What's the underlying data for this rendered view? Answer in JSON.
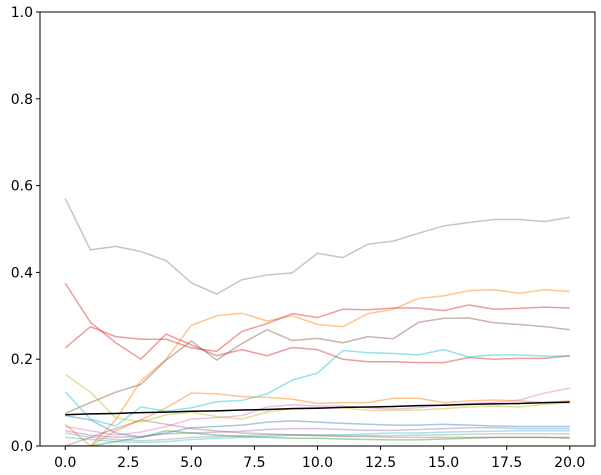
{
  "chart_data": {
    "type": "line",
    "title": "",
    "xlabel": "",
    "ylabel": "",
    "xlim": [
      -1,
      21
    ],
    "ylim": [
      0,
      1
    ],
    "grid": false,
    "legend": "none",
    "x": [
      0,
      1,
      2,
      3,
      4,
      5,
      6,
      7,
      8,
      9,
      10,
      11,
      12,
      13,
      14,
      15,
      16,
      17,
      18,
      19,
      20
    ],
    "x_ticks": [
      0.0,
      2.5,
      5.0,
      7.5,
      10.0,
      12.5,
      15.0,
      17.5,
      20.0
    ],
    "x_tick_labels": [
      "0.0",
      "2.5",
      "5.0",
      "7.5",
      "10.0",
      "12.5",
      "15.0",
      "17.5",
      "20.0"
    ],
    "y_ticks": [
      0.0,
      0.2,
      0.4,
      0.6,
      0.8,
      1.0
    ],
    "y_tick_labels": [
      "0.0",
      "0.2",
      "0.4",
      "0.6",
      "0.8",
      "1.0"
    ],
    "series": [
      {
        "color": "#7f7f7f",
        "alpha": 0.45,
        "width": 1.5,
        "values": [
          0.57,
          0.452,
          0.46,
          0.448,
          0.427,
          0.376,
          0.35,
          0.383,
          0.394,
          0.399,
          0.444,
          0.434,
          0.465,
          0.472,
          0.49,
          0.507,
          0.515,
          0.522,
          0.522,
          0.517,
          0.527
        ]
      },
      {
        "color": "#ff7f0e",
        "alpha": 0.45,
        "width": 1.5,
        "values": [
          0.0,
          0.0,
          0.06,
          0.15,
          0.2,
          0.278,
          0.3,
          0.306,
          0.288,
          0.3,
          0.28,
          0.275,
          0.305,
          0.315,
          0.34,
          0.346,
          0.358,
          0.36,
          0.352,
          0.36,
          0.356
        ]
      },
      {
        "color": "#d62728",
        "alpha": 0.45,
        "width": 1.5,
        "values": [
          0.226,
          0.275,
          0.252,
          0.246,
          0.246,
          0.226,
          0.218,
          0.264,
          0.282,
          0.305,
          0.296,
          0.315,
          0.314,
          0.318,
          0.318,
          0.312,
          0.325,
          0.315,
          0.317,
          0.32,
          0.318
        ]
      },
      {
        "color": "#8c564b",
        "alpha": 0.45,
        "width": 1.5,
        "values": [
          0.075,
          0.1,
          0.124,
          0.142,
          0.198,
          0.242,
          0.198,
          0.236,
          0.268,
          0.243,
          0.248,
          0.238,
          0.252,
          0.247,
          0.285,
          0.294,
          0.295,
          0.284,
          0.28,
          0.275,
          0.268
        ]
      },
      {
        "color": "#d62728",
        "alpha": 0.45,
        "width": 1.5,
        "values": [
          0.375,
          0.285,
          0.238,
          0.2,
          0.258,
          0.233,
          0.208,
          0.222,
          0.208,
          0.227,
          0.222,
          0.2,
          0.194,
          0.194,
          0.192,
          0.192,
          0.204,
          0.2,
          0.202,
          0.202,
          0.208
        ]
      },
      {
        "color": "#17becf",
        "alpha": 0.45,
        "width": 1.5,
        "values": [
          0.125,
          0.062,
          0.046,
          0.09,
          0.08,
          0.088,
          0.102,
          0.105,
          0.12,
          0.152,
          0.168,
          0.22,
          0.215,
          0.213,
          0.21,
          0.222,
          0.205,
          0.21,
          0.21,
          0.207,
          0.207
        ]
      },
      {
        "color": "#bcbd22",
        "alpha": 0.45,
        "width": 1.5,
        "values": [
          0.165,
          0.124,
          0.065,
          0.055,
          0.072,
          0.078,
          0.068,
          0.062,
          0.078,
          0.087,
          0.088,
          0.088,
          0.082,
          0.082,
          0.083,
          0.086,
          0.09,
          0.092,
          0.09,
          0.096,
          0.1
        ]
      },
      {
        "color": "#ff7f0e",
        "alpha": 0.45,
        "width": 1.5,
        "values": [
          0.05,
          0.0,
          0.035,
          0.06,
          0.088,
          0.122,
          0.12,
          0.114,
          0.112,
          0.108,
          0.098,
          0.1,
          0.1,
          0.11,
          0.11,
          0.1,
          0.104,
          0.106,
          0.104,
          0.1,
          0.104
        ]
      },
      {
        "color": "#e377c2",
        "alpha": 0.45,
        "width": 1.5,
        "values": [
          0.045,
          0.035,
          0.025,
          0.032,
          0.045,
          0.062,
          0.065,
          0.07,
          0.09,
          0.095,
          0.092,
          0.092,
          0.088,
          0.085,
          0.088,
          0.095,
          0.098,
          0.1,
          0.106,
          0.122,
          0.133
        ]
      },
      {
        "color": "#1f77b4",
        "alpha": 0.4,
        "width": 1.5,
        "values": [
          0.07,
          0.06,
          0.03,
          0.02,
          0.03,
          0.042,
          0.045,
          0.048,
          0.055,
          0.058,
          0.055,
          0.052,
          0.05,
          0.048,
          0.048,
          0.05,
          0.048,
          0.046,
          0.045,
          0.045,
          0.045
        ]
      },
      {
        "color": "#9467bd",
        "alpha": 0.4,
        "width": 1.5,
        "values": [
          0.035,
          0.025,
          0.02,
          0.022,
          0.028,
          0.03,
          0.032,
          0.034,
          0.038,
          0.04,
          0.04,
          0.038,
          0.036,
          0.036,
          0.038,
          0.04,
          0.042,
          0.042,
          0.04,
          0.04,
          0.04
        ]
      },
      {
        "color": "#2ca02c",
        "alpha": 0.45,
        "width": 1.5,
        "values": [
          0.0,
          0.0,
          0.01,
          0.02,
          0.035,
          0.03,
          0.025,
          0.022,
          0.02,
          0.018,
          0.018,
          0.016,
          0.015,
          0.014,
          0.014,
          0.016,
          0.018,
          0.02,
          0.02,
          0.02,
          0.018
        ]
      },
      {
        "color": "#17becf",
        "alpha": 0.4,
        "width": 1.5,
        "values": [
          0.02,
          0.015,
          0.01,
          0.008,
          0.01,
          0.015,
          0.018,
          0.02,
          0.022,
          0.025,
          0.025,
          0.026,
          0.028,
          0.03,
          0.03,
          0.032,
          0.033,
          0.034,
          0.035,
          0.035,
          0.035
        ]
      },
      {
        "color": "#8c564b",
        "alpha": 0.35,
        "width": 1.5,
        "values": [
          0.0,
          0.02,
          0.04,
          0.06,
          0.05,
          0.04,
          0.035,
          0.03,
          0.028,
          0.026,
          0.024,
          0.022,
          0.022,
          0.02,
          0.02,
          0.02,
          0.02,
          0.02,
          0.02,
          0.02,
          0.02
        ]
      },
      {
        "color": "#7f7f7f",
        "alpha": 0.35,
        "width": 1.5,
        "values": [
          0.03,
          0.02,
          0.015,
          0.012,
          0.015,
          0.02,
          0.022,
          0.024,
          0.026,
          0.026,
          0.025,
          0.024,
          0.024,
          0.024,
          0.025,
          0.026,
          0.027,
          0.028,
          0.028,
          0.028,
          0.028
        ]
      },
      {
        "color": "#000000",
        "alpha": 1.0,
        "width": 1.5,
        "values": [
          0.072,
          0.074,
          0.075,
          0.077,
          0.078,
          0.08,
          0.081,
          0.083,
          0.084,
          0.086,
          0.087,
          0.089,
          0.09,
          0.091,
          0.093,
          0.094,
          0.096,
          0.097,
          0.098,
          0.1,
          0.101
        ]
      }
    ]
  }
}
